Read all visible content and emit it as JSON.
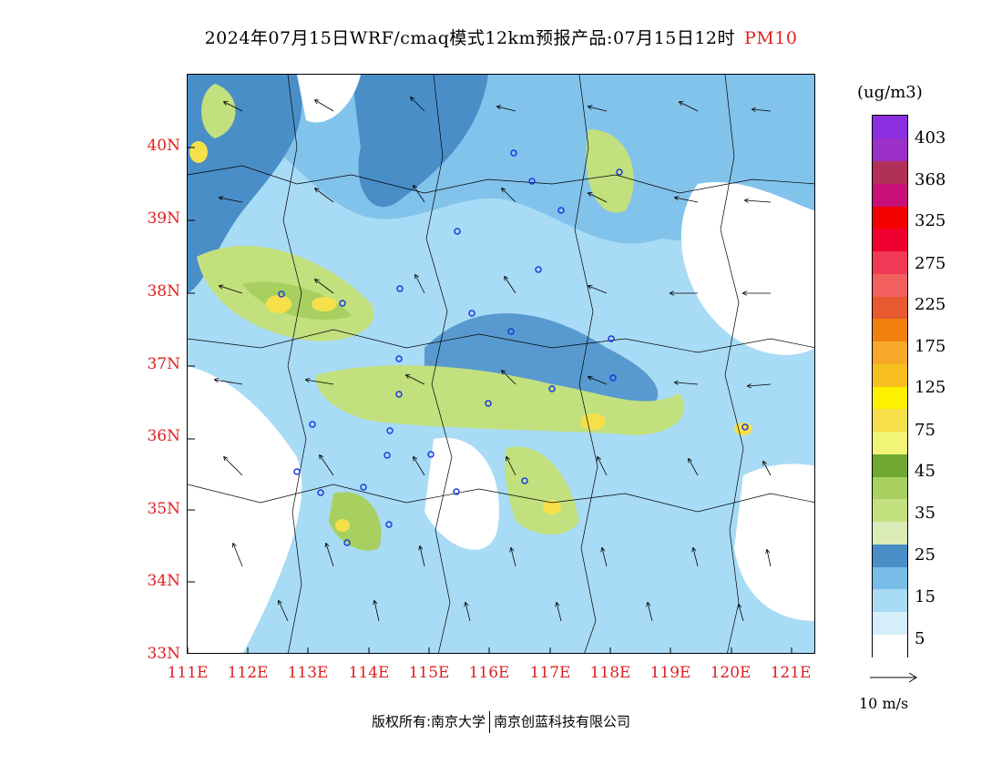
{
  "title": {
    "main": "2024年07月15日WRF/cmaq模式12km预报产品:07月15日12时",
    "variable": "PM10"
  },
  "map": {
    "lat_labels": [
      "40N",
      "39N",
      "38N",
      "37N",
      "36N",
      "35N",
      "34N",
      "33N"
    ],
    "lon_labels": [
      "111E",
      "112E",
      "113E",
      "114E",
      "115E",
      "116E",
      "117E",
      "118E",
      "119E",
      "120E",
      "121E"
    ],
    "extent": {
      "lon": [
        111,
        121.4
      ],
      "lat": [
        33,
        41
      ]
    }
  },
  "colorbar": {
    "unit": "(ug/m3)",
    "labels": [
      "403",
      "368",
      "325",
      "275",
      "225",
      "175",
      "125",
      "75",
      "45",
      "35",
      "25",
      "15",
      "5"
    ],
    "colors": [
      "#ffffff",
      "#d6eefa",
      "#a8dbf5",
      "#78bde8",
      "#4a8ec8",
      "#dcecb8",
      "#c2e07e",
      "#a8d060",
      "#6ea832",
      "#f2f478",
      "#f5e04a",
      "#fff000",
      "#f7c020",
      "#f7a828",
      "#f08010",
      "#e85a30",
      "#f26060",
      "#f03a58",
      "#f00030",
      "#f50000",
      "#c8107a",
      "#b03058",
      "#9a30c8",
      "#8a2ee0"
    ]
  },
  "wind_legend": {
    "label": "10 m/s"
  },
  "footer": {
    "left": "版权所有:南京大学",
    "right": "南京创蓝科技有限公司"
  },
  "colors": {
    "axis": "#e02020",
    "accent": "#e02020"
  },
  "icons": [
    "wind-arrow-icon",
    "station-marker-icon"
  ]
}
